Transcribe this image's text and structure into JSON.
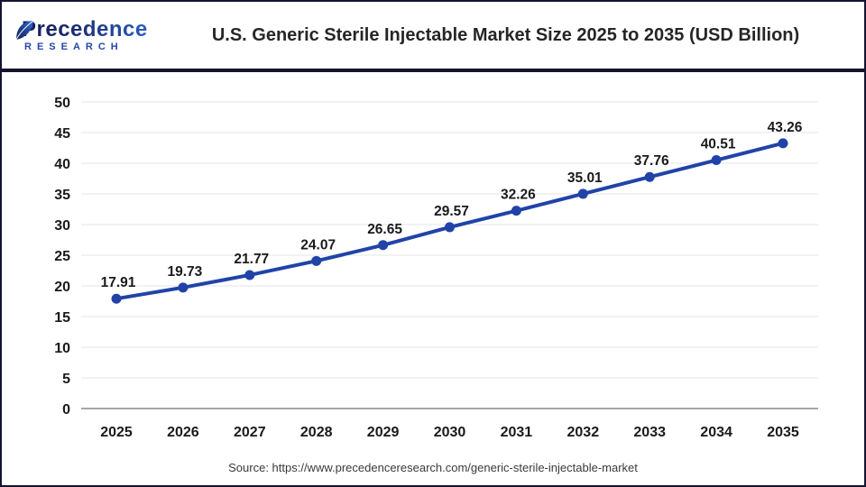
{
  "header": {
    "brand": {
      "line1": "Precedence",
      "line2": "RESEARCH"
    },
    "title": "U.S. Generic Sterile Injectable Market Size 2025 to 2035 (USD Billion)"
  },
  "footer": {
    "source": "Source: https://www.precedenceresearch.com/generic-sterile-injectable-market"
  },
  "colors": {
    "line": "#2143a8",
    "marker": "#2143a8",
    "grid": "#e6e6e6",
    "baseline": "#a6a6a6",
    "tick_label": "#1a1a1a",
    "data_label": "#1a1a1a",
    "border": "#14142f",
    "brand_navy": "#1b2566",
    "brand_blue": "#2e6bd6"
  },
  "chart_data": {
    "type": "line",
    "title": "U.S. Generic Sterile Injectable Market Size 2025 to 2035 (USD Billion)",
    "categories": [
      "2025",
      "2026",
      "2027",
      "2028",
      "2029",
      "2030",
      "2031",
      "2032",
      "2033",
      "2034",
      "2035"
    ],
    "values": [
      17.91,
      19.73,
      21.77,
      24.07,
      26.65,
      29.57,
      32.26,
      35.01,
      37.76,
      40.51,
      43.26
    ],
    "series_name": "U.S. Generic Sterile Injectable Market Size (USD Billion)",
    "xlabel": "",
    "ylabel": "",
    "ylim": [
      0,
      50
    ],
    "ytick_step": 5,
    "grid": "horizontal",
    "legend": "none",
    "marker": "circle",
    "data_labels": true
  }
}
